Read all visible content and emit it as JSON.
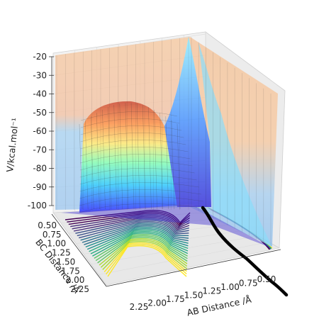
{
  "chart_data": {
    "type": "surface3d",
    "zlabel": "V/kcal.mol⁻¹",
    "xlabel": "AB Distance /Å",
    "ylabel": "BC Distance /Å",
    "z_ticks": [
      "-20",
      "-30",
      "-40",
      "-50",
      "-60",
      "-70",
      "-80",
      "-90",
      "-100"
    ],
    "x_ticks": [
      "2.25",
      "2.00",
      "1.75",
      "1.50",
      "1.25",
      "1.00",
      "0.75",
      "0.50"
    ],
    "y_ticks": [
      "0.50",
      "0.75",
      "1.00",
      "1.25",
      "1.50",
      "1.75",
      "2.00",
      "2.25"
    ],
    "zlim": [
      -105,
      -20
    ],
    "xlim": [
      0.4,
      2.4
    ],
    "ylim": [
      0.4,
      2.4
    ],
    "colormap": "jet",
    "contour_colormap": "viridis",
    "trajectory_color": "#000000",
    "pane_color": "#f2f2f2",
    "grid_color": "#dddddd"
  }
}
